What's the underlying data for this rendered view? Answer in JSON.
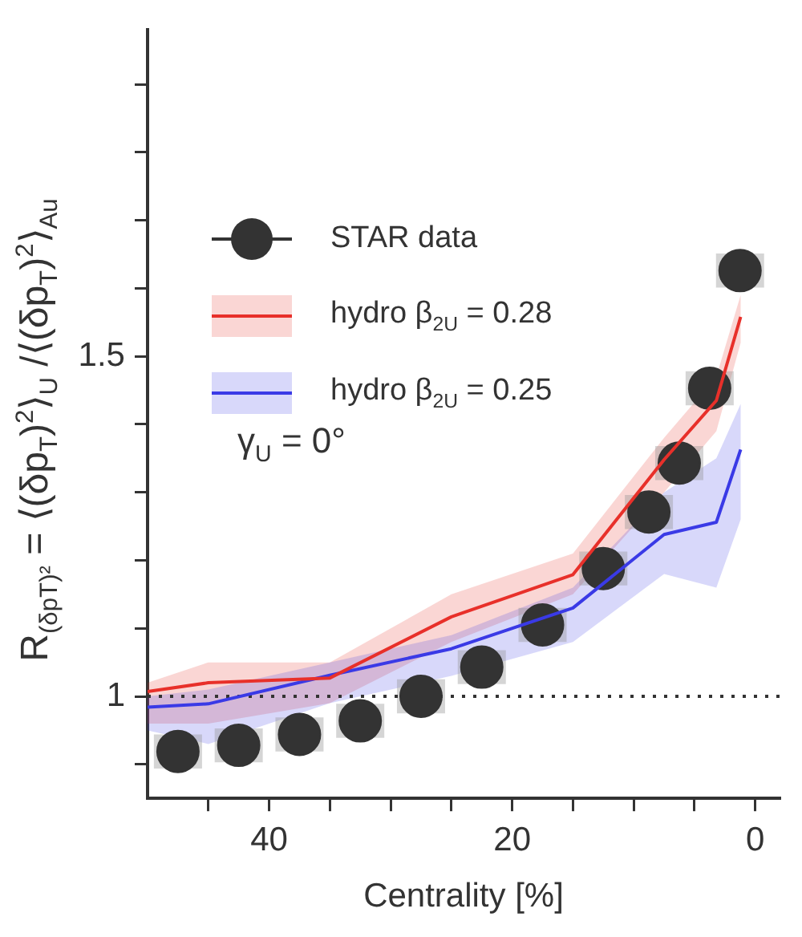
{
  "chart_data": {
    "type": "scatter",
    "xlabel": "Centrality [%]",
    "ylabel": "R$_{(δp}$$_{T}$$_{)²}$ = ⟨(δp$_{T}$)$^{2}$⟩$_{U}$ /⟨(δp$_{T}$)$^{2}$⟩$_{Au}$",
    "xlim": [
      50,
      -2
    ],
    "xticks": [
      {
        "value": 45,
        "label": null
      },
      40,
      {
        "value": 35,
        "label": null
      },
      {
        "value": 30,
        "label": null
      },
      {
        "value": 25,
        "label": null
      },
      20,
      {
        "value": 15,
        "label": null
      },
      {
        "value": 10,
        "label": null
      },
      {
        "value": 5,
        "label": null
      },
      0
    ],
    "ylim": [
      0.85,
      1.98
    ],
    "yticks": [
      {
        "value": 0.9,
        "label": null
      },
      1,
      {
        "value": 1.1,
        "label": null
      },
      {
        "value": 1.2,
        "label": null
      },
      {
        "value": 1.3,
        "label": null
      },
      {
        "value": 1.4,
        "label": null
      },
      1.5,
      {
        "value": 1.6,
        "label": null
      },
      {
        "value": 1.7,
        "label": null
      },
      {
        "value": 1.8,
        "label": null
      },
      {
        "value": 1.9,
        "label": null
      }
    ],
    "grid": false,
    "legend": "top left",
    "annotations": [
      "γ$_{U}$ = 0°"
    ],
    "ref_lines": [
      {
        "axis": "y",
        "value": 1,
        "color": "#333333",
        "line_style": "dotted"
      }
    ],
    "series": [
      {
        "name": "hydro β$_{2U}$ = 0.28",
        "type": "line",
        "color": "#e8302a",
        "x": [
          50,
          45,
          35,
          25,
          15,
          7.5,
          3.2,
          1.2
        ],
        "values": [
          1.007,
          1.02,
          1.027,
          1.117,
          1.179,
          1.348,
          1.435,
          1.558
        ],
        "lower": [
          0.96,
          0.96,
          0.99,
          1.08,
          1.15,
          1.3,
          1.39,
          1.52
        ],
        "upper": [
          1.02,
          1.05,
          1.05,
          1.15,
          1.21,
          1.38,
          1.47,
          1.59
        ]
      },
      {
        "name": "hydro β$_{2U}$ = 0.25",
        "type": "line",
        "color": "#3a3ae6",
        "x": [
          50,
          45,
          35,
          25,
          15,
          7.5,
          3.2,
          1.2
        ],
        "values": [
          0.984,
          0.989,
          1.031,
          1.07,
          1.13,
          1.238,
          1.256,
          1.363
        ],
        "lower": [
          0.95,
          0.93,
          0.99,
          1.03,
          1.08,
          1.18,
          1.16,
          1.26
        ],
        "upper": [
          1.0,
          1.01,
          1.05,
          1.09,
          1.16,
          1.3,
          1.35,
          1.43
        ]
      },
      {
        "name": "STAR data",
        "marker": "circle",
        "color": "#333333",
        "x": [
          47.5,
          42.5,
          37.5,
          32.5,
          27.5,
          22.5,
          17.5,
          12.5,
          8.75,
          6.25,
          3.75,
          1.25
        ],
        "values": [
          0.919,
          0.928,
          0.944,
          0.964,
          1.0,
          1.043,
          1.105,
          1.188,
          1.271,
          1.343,
          1.453,
          1.626
        ],
        "errors": [
          0.025,
          0.025,
          0.025,
          0.025,
          0.025,
          0.025,
          0.025,
          0.025,
          0.025,
          0.025,
          0.025,
          0.025
        ]
      }
    ]
  }
}
